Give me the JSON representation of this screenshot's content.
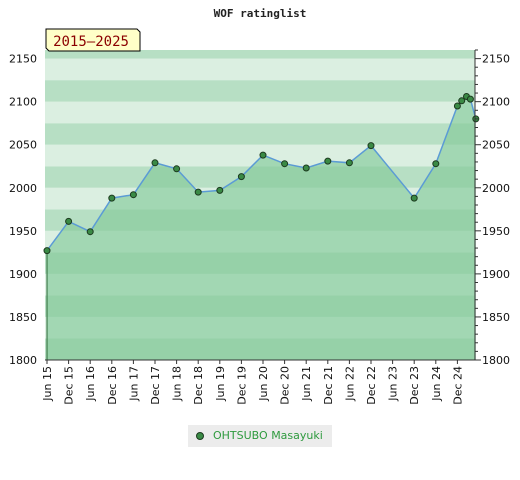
{
  "chart_data": {
    "type": "area",
    "title": "WOF ratinglist",
    "period_label": "2015–2025",
    "y_ticks": [
      1800,
      1850,
      1900,
      1950,
      2000,
      2050,
      2100,
      2150
    ],
    "ylim": [
      1800,
      2160
    ],
    "x_tick_labels": [
      "Jun 15",
      "Dec 15",
      "Jun 16",
      "Dec 16",
      "Jun 17",
      "Dec 17",
      "Jun 18",
      "Dec 18",
      "Jun 19",
      "Dec 19",
      "Jun 20",
      "Dec 20",
      "Jun 21",
      "Dec 21",
      "Jun 22",
      "Dec 22",
      "Jun 23",
      "Dec 23",
      "Jun 24",
      "Dec 24"
    ],
    "x_tick_index": [
      0,
      1,
      2,
      3,
      4,
      5,
      6,
      7,
      8,
      9,
      10,
      11,
      12,
      13,
      14,
      15,
      16,
      17,
      18,
      19
    ],
    "xlim": [
      0,
      19.85
    ],
    "series": [
      {
        "name": "OHTSUBO Masayuki",
        "x": [
          0,
          1,
          2,
          3,
          4,
          5,
          6,
          7,
          8,
          9,
          10,
          11,
          12,
          13,
          14,
          15,
          17,
          18,
          19,
          19.2,
          19.42,
          19.6,
          19.85
        ],
        "y": [
          1927,
          1961,
          1949,
          1988,
          1992,
          2029,
          2022,
          1995,
          1997,
          2013,
          2038,
          2028,
          2023,
          2031,
          2029,
          2049,
          1988,
          2028,
          2095,
          2101,
          2106,
          2103,
          2080
        ]
      }
    ],
    "colors": {
      "line": "#5b9bd5",
      "fill": "#84c99a",
      "marker": "#3a8a45",
      "band_dark": "#b7dfc4",
      "band_light": "#dbefe1"
    }
  }
}
